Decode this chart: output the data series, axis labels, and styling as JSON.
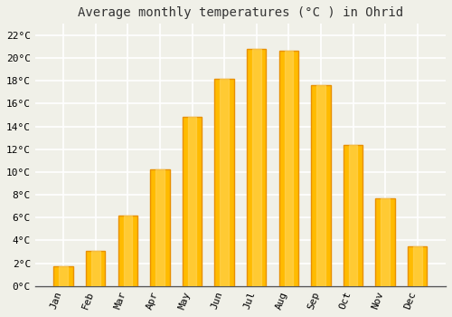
{
  "title": "Average monthly temperatures (°C ) in Ohrid",
  "months": [
    "Jan",
    "Feb",
    "Mar",
    "Apr",
    "May",
    "Jun",
    "Jul",
    "Aug",
    "Sep",
    "Oct",
    "Nov",
    "Dec"
  ],
  "values": [
    1.7,
    3.1,
    6.2,
    10.2,
    14.8,
    18.2,
    20.8,
    20.6,
    17.6,
    12.4,
    7.7,
    3.5
  ],
  "bar_color_main": "#FFBB00",
  "bar_color_edge": "#E89000",
  "background_color": "#F0F0E8",
  "grid_color": "#FFFFFF",
  "ylim": [
    0,
    23
  ],
  "yticks": [
    0,
    2,
    4,
    6,
    8,
    10,
    12,
    14,
    16,
    18,
    20,
    22
  ],
  "title_fontsize": 10,
  "tick_fontsize": 8,
  "font_family": "monospace"
}
